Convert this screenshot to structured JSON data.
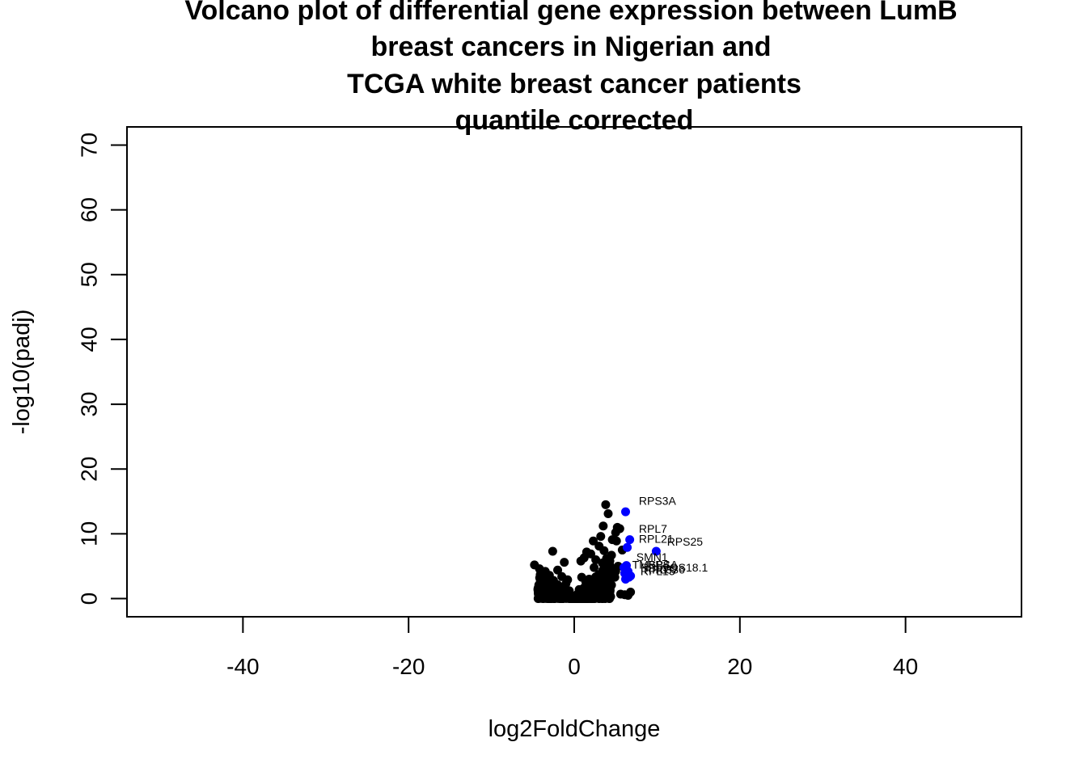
{
  "chart_data": {
    "type": "scatter",
    "title_lines": [
      "Volcano plot of differential gene expression between LumB",
      "breast cancers in Nigerian and",
      "TCGA white breast cancer patients",
      "quantile corrected"
    ],
    "xlabel": "log2FoldChange",
    "ylabel": "-log10(padj)",
    "xlim": [
      -54,
      54
    ],
    "ylim": [
      -2.8,
      72.8
    ],
    "x_ticks": [
      -40,
      -20,
      0,
      20,
      40
    ],
    "y_ticks": [
      0,
      10,
      20,
      30,
      40,
      50,
      60,
      70
    ],
    "grid": false,
    "legend": "none",
    "colors": {
      "background_points": "#000000",
      "highlighted_points": "#0000ff"
    },
    "series": [
      {
        "color": "#000000",
        "points": [
          [
            3.8,
            14.5
          ],
          [
            4.1,
            13.1
          ],
          [
            3.5,
            11.2
          ],
          [
            5.2,
            11.0
          ],
          [
            5.5,
            10.8
          ],
          [
            5.0,
            10.2
          ],
          [
            3.2,
            9.6
          ],
          [
            4.6,
            9.1
          ],
          [
            2.3,
            8.9
          ],
          [
            5.1,
            8.9
          ],
          [
            3.0,
            8.1
          ],
          [
            -2.6,
            7.3
          ],
          [
            3.6,
            7.4
          ],
          [
            1.5,
            7.2
          ],
          [
            5.8,
            7.5
          ],
          [
            2.0,
            6.9
          ],
          [
            4.5,
            6.7
          ],
          [
            1.2,
            6.3
          ],
          [
            -1.2,
            5.6
          ],
          [
            0.8,
            5.8
          ],
          [
            3.4,
            5.5
          ],
          [
            5.3,
            5.0
          ],
          [
            -4.8,
            5.2
          ],
          [
            -4.2,
            4.6
          ],
          [
            -3.5,
            4.2
          ],
          [
            -2.0,
            4.4
          ],
          [
            2.4,
            4.8
          ],
          [
            4.2,
            4.6
          ],
          [
            -3.0,
            3.6
          ],
          [
            -1.5,
            3.4
          ],
          [
            2.9,
            3.6
          ],
          [
            4.9,
            3.3
          ],
          [
            6.8,
            1.0
          ],
          [
            6.1,
            0.6
          ],
          [
            6.5,
            0.5
          ],
          [
            5.6,
            0.7
          ],
          [
            -3.8,
            2.5
          ],
          [
            -3.3,
            2.1
          ],
          [
            -2.5,
            2.8
          ],
          [
            -2.2,
            1.9
          ],
          [
            -1.8,
            1.5
          ],
          [
            -1.0,
            2.3
          ],
          [
            -0.6,
            1.2
          ],
          [
            0.6,
            1.4
          ],
          [
            1.4,
            2.6
          ],
          [
            1.8,
            3.0
          ],
          [
            2.2,
            2.5
          ],
          [
            3.1,
            2.2
          ],
          [
            3.8,
            1.8
          ],
          [
            4.5,
            2.1
          ],
          [
            -3.4,
            1.1
          ],
          [
            -2.8,
            0.9
          ],
          [
            1.3,
            0.5
          ],
          [
            0.3,
            0.4
          ],
          [
            3.9,
            6.2
          ],
          [
            4.3,
            5.8
          ],
          [
            5.0,
            4.2
          ],
          [
            -0.8,
            2.9
          ],
          [
            0.9,
            3.3
          ],
          [
            2.6,
            6.0
          ]
        ]
      },
      {
        "color": "#0000ff",
        "points": [
          {
            "gene": "RPS3A",
            "x": 6.2,
            "y": 13.4
          },
          {
            "gene": "RPL7",
            "x": 6.7,
            "y": 9.1
          },
          {
            "gene": "RPL21",
            "x": 6.4,
            "y": 7.9
          },
          {
            "gene": "RPS25",
            "x": 9.9,
            "y": 7.3
          },
          {
            "gene": "SMN1",
            "x": 6.3,
            "y": 5.1
          },
          {
            "gene": "TMSB4",
            "x": 6.0,
            "y": 4.8
          },
          {
            "gene": "RPSA",
            "x": 6.5,
            "y": 4.2
          },
          {
            "gene": "GS18.1",
            "x": 6.1,
            "y": 3.9
          },
          {
            "gene": "RPL9",
            "x": 6.3,
            "y": 3.6
          },
          {
            "gene": "RPL37",
            "x": 6.6,
            "y": 3.3
          },
          {
            "gene": "RPS6",
            "x": 6.2,
            "y": 3.0
          },
          {
            "gene": "RPL15",
            "x": 6.8,
            "y": 3.5
          }
        ]
      }
    ],
    "annotations": [
      {
        "text": "RPS3A",
        "x": 7.8,
        "y": 14.5
      },
      {
        "text": "RPL7",
        "x": 7.8,
        "y": 10.2
      },
      {
        "text": "RPL21",
        "x": 7.8,
        "y": 8.6
      },
      {
        "text": "RPS25",
        "x": 11.2,
        "y": 8.2
      },
      {
        "text": "SMN1",
        "x": 7.5,
        "y": 5.8
      },
      {
        "text": "TMSB4",
        "x": 7.0,
        "y": 4.6
      },
      {
        "text": "RPSA",
        "x": 8.8,
        "y": 4.6
      },
      {
        "text": "GS18.1",
        "x": 11.5,
        "y": 4.2
      },
      {
        "text": "RPL9",
        "x": 8.0,
        "y": 4.2
      },
      {
        "text": "RPL37",
        "x": 8.4,
        "y": 3.9
      },
      {
        "text": "RPS6",
        "x": 9.8,
        "y": 3.9
      },
      {
        "text": "RPL15",
        "x": 8.0,
        "y": 3.6
      }
    ]
  }
}
